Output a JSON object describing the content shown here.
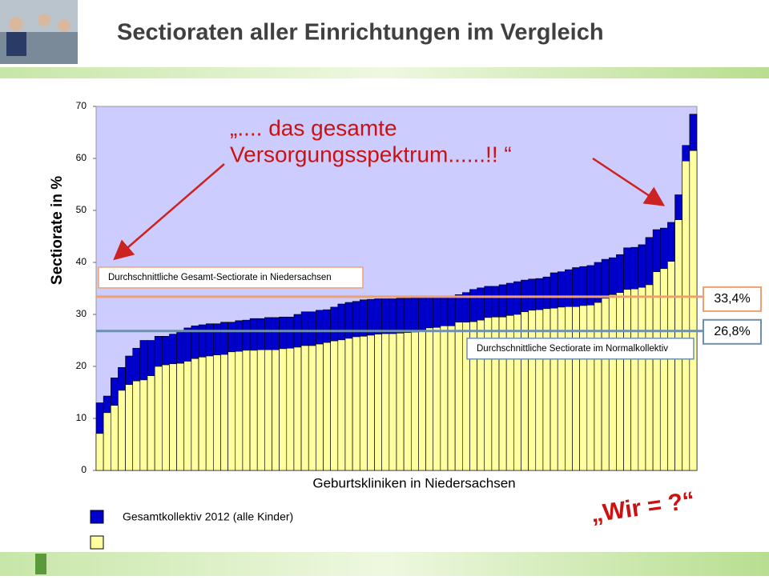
{
  "title": "Sectioraten aller Einrichtungen im Vergleich",
  "annotation": [
    "„.... das gesamte",
    "Versorgungsspektrum......!! “"
  ],
  "question": "„Wir  = ?“",
  "chart_data": {
    "type": "bar",
    "ylabel": "Sectiorate in %",
    "xlabel": "Geburtskliniken in Niedersachsen",
    "ylim": [
      0,
      70
    ],
    "yticks": [
      0,
      10,
      20,
      30,
      40,
      50,
      60,
      70
    ],
    "series": [
      {
        "name": "Gesamtkollektiv 2012 (alle Kinder)",
        "color": "#0000cc",
        "values": [
          13,
          14.3,
          17.8,
          19.8,
          22,
          23.5,
          25,
          25,
          25.8,
          25.8,
          26.2,
          26.6,
          27.4,
          27.8,
          28,
          28.2,
          28.2,
          28.5,
          28.5,
          28.8,
          28.9,
          29.2,
          29.2,
          29.4,
          29.4,
          29.5,
          29.5,
          30,
          30.5,
          30.5,
          30.8,
          30.9,
          31.4,
          32,
          32.3,
          32.5,
          32.8,
          32.9,
          33,
          33,
          33,
          33.1,
          33.1,
          33.2,
          33.2,
          33.3,
          33.3,
          33.4,
          33.5,
          33.8,
          34.2,
          34.8,
          35.1,
          35.4,
          35.4,
          35.7,
          36,
          36.3,
          36.6,
          36.8,
          36.9,
          37.2,
          38,
          38.2,
          38.6,
          39,
          39.2,
          39.4,
          40,
          40.6,
          40.9,
          41.5,
          42.8,
          42.9,
          43.4,
          44.8,
          46.3,
          46.6,
          47.7,
          53,
          62.5,
          68.5
        ]
      },
      {
        "color": "#ffffa0",
        "values": [
          7.1,
          11.1,
          12.5,
          15.4,
          16.5,
          17.2,
          17.4,
          18.2,
          20,
          20.3,
          20.5,
          20.6,
          21,
          21.5,
          21.8,
          22,
          22.2,
          22.3,
          22.8,
          22.9,
          23.1,
          23.1,
          23.2,
          23.2,
          23.2,
          23.4,
          23.5,
          23.7,
          24,
          24,
          24.3,
          24.6,
          24.9,
          25.1,
          25.4,
          25.7,
          25.8,
          26,
          26.2,
          26.3,
          26.3,
          26.4,
          26.5,
          26.6,
          26.9,
          27.4,
          27.5,
          27.8,
          27.8,
          28.5,
          28.5,
          28.6,
          28.9,
          29.4,
          29.5,
          29.5,
          29.8,
          30,
          30.5,
          30.8,
          30.9,
          31.1,
          31.2,
          31.4,
          31.5,
          31.5,
          31.7,
          31.8,
          32.3,
          33.1,
          33.8,
          34.2,
          34.8,
          34.9,
          35.2,
          35.7,
          38.2,
          38.8,
          40.2,
          48.2,
          59.5,
          61.5
        ]
      }
    ],
    "reference_lines": [
      {
        "value": 33.4,
        "label": "33,4%",
        "text": "Durchschnittliche Gesamt-Sectiorate in Niedersachsen",
        "color": "#f0a070"
      },
      {
        "value": 26.8,
        "label": "26,8%",
        "text": "Durchschnittliche Sectiorate im Normalkollektiv",
        "color": "#6f8fb0"
      }
    ]
  }
}
